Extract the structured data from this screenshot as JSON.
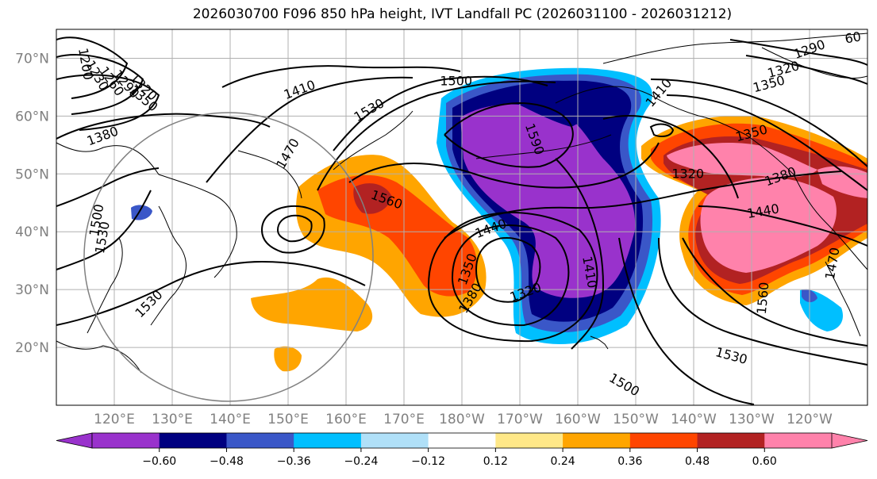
{
  "title": "2026030700 F096 850 hPa height, IVT Landfall PC (2026031100 - 2026031212)",
  "map": {
    "lon_range": [
      110,
      250
    ],
    "lat_range": [
      10,
      75
    ],
    "lat_ticks": [
      {
        "lat": 70,
        "label": "70°N"
      },
      {
        "lat": 60,
        "label": "60°N"
      },
      {
        "lat": 50,
        "label": "50°N"
      },
      {
        "lat": 40,
        "label": "40°N"
      },
      {
        "lat": 30,
        "label": "30°N"
      },
      {
        "lat": 20,
        "label": "20°N"
      }
    ],
    "lon_ticks": [
      {
        "lon": 120,
        "label": "120°E"
      },
      {
        "lon": 130,
        "label": "130°E"
      },
      {
        "lon": 140,
        "label": "140°E"
      },
      {
        "lon": 150,
        "label": "150°E"
      },
      {
        "lon": 160,
        "label": "160°E"
      },
      {
        "lon": 170,
        "label": "170°E"
      },
      {
        "lon": 180,
        "label": "180°W"
      },
      {
        "lon": 190,
        "label": "170°W"
      },
      {
        "lon": 200,
        "label": "160°W"
      },
      {
        "lon": 210,
        "label": "150°W"
      },
      {
        "lon": 220,
        "label": "140°W"
      },
      {
        "lon": 230,
        "label": "130°W"
      },
      {
        "lon": 240,
        "label": "120°W"
      }
    ],
    "contour_labels": [
      {
        "text": "1200",
        "lon": 115,
        "lat": 69,
        "rot": 80
      },
      {
        "text": "1230",
        "lon": 117,
        "lat": 67,
        "rot": 60
      },
      {
        "text": "1260",
        "lon": 119.5,
        "lat": 66,
        "rot": 55
      },
      {
        "text": "1290",
        "lon": 122,
        "lat": 65.5,
        "rot": 50
      },
      {
        "text": "1320",
        "lon": 125,
        "lat": 65,
        "rot": 45
      },
      {
        "text": "1350",
        "lon": 125,
        "lat": 63,
        "rot": 40
      },
      {
        "text": "1380",
        "lon": 118,
        "lat": 56.5,
        "rot": -20
      },
      {
        "text": "1410",
        "lon": 152,
        "lat": 64.5,
        "rot": -20
      },
      {
        "text": "1470",
        "lon": 150,
        "lat": 53.5,
        "rot": -60
      },
      {
        "text": "1530",
        "lon": 164,
        "lat": 61,
        "rot": -30
      },
      {
        "text": "1500",
        "lon": 179,
        "lat": 66,
        "rot": 0
      },
      {
        "text": "1590",
        "lon": 192.5,
        "lat": 56,
        "rot": 70
      },
      {
        "text": "1410",
        "lon": 214,
        "lat": 64,
        "rot": -50
      },
      {
        "text": "1560",
        "lon": 167,
        "lat": 45.5,
        "rot": 20
      },
      {
        "text": "1440",
        "lon": 185,
        "lat": 40.5,
        "rot": -20
      },
      {
        "text": "1350",
        "lon": 181,
        "lat": 33.5,
        "rot": -70
      },
      {
        "text": "1380",
        "lon": 181.5,
        "lat": 28.5,
        "rot": -60
      },
      {
        "text": "1320",
        "lon": 191,
        "lat": 29.5,
        "rot": -20
      },
      {
        "text": "1410",
        "lon": 202,
        "lat": 33,
        "rot": 80
      },
      {
        "text": "1500",
        "lon": 117,
        "lat": 42,
        "rot": -80
      },
      {
        "text": "1530",
        "lon": 118,
        "lat": 39,
        "rot": -80
      },
      {
        "text": "1530",
        "lon": 126,
        "lat": 27.5,
        "rot": -45
      },
      {
        "text": "1320",
        "lon": 219,
        "lat": 50,
        "rot": 0
      },
      {
        "text": "1350",
        "lon": 230,
        "lat": 57,
        "rot": -15
      },
      {
        "text": "1380",
        "lon": 235,
        "lat": 49.5,
        "rot": -20
      },
      {
        "text": "1440",
        "lon": 232,
        "lat": 43.5,
        "rot": -10
      },
      {
        "text": "1470",
        "lon": 244,
        "lat": 34.5,
        "rot": -80
      },
      {
        "text": "1560",
        "lon": 232,
        "lat": 28.5,
        "rot": -85
      },
      {
        "text": "1530",
        "lon": 226.5,
        "lat": 18.5,
        "rot": 15
      },
      {
        "text": "1500",
        "lon": 208,
        "lat": 13.5,
        "rot": 30
      },
      {
        "text": "1290",
        "lon": 240,
        "lat": 71.5,
        "rot": -20
      },
      {
        "text": "1320",
        "lon": 235.5,
        "lat": 68,
        "rot": -15
      },
      {
        "text": "1350",
        "lon": 233,
        "lat": 65.5,
        "rot": -15
      },
      {
        "text": "60",
        "lon": 247.5,
        "lat": 73.5,
        "rot": -10
      }
    ]
  },
  "colorbar": {
    "colors": [
      "#9932CC",
      "#000080",
      "#3A57C8",
      "#00BFFF",
      "#B0E0F8",
      "#FFFFFF",
      "#FFE888",
      "#FFA500",
      "#FF4500",
      "#B22222",
      "#FF82AB"
    ],
    "ticks": [
      "−0.60",
      "−0.48",
      "−0.36",
      "−0.24",
      "−0.12",
      "0.12",
      "0.24",
      "0.36",
      "0.48",
      "0.60"
    ]
  }
}
